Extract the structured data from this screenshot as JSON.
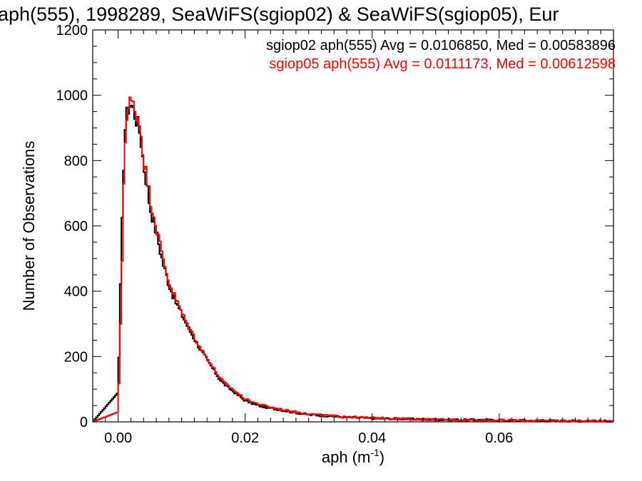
{
  "chart_data": {
    "type": "histogram-step",
    "title": "aph(555), 1998289, SeaWiFS(sgiop02) & SeaWiFS(sgiop05), Eur",
    "xlabel": "aph (m",
    "xlabel_sup": "-1",
    "xlabel_close": ")",
    "ylabel": "Number of Observations",
    "xlim": [
      -0.004,
      0.078
    ],
    "ylim": [
      0,
      1200
    ],
    "x_ticks": [
      0.0,
      0.02,
      0.04,
      0.06
    ],
    "x_tick_labels": [
      "0.00",
      "0.02",
      "0.04",
      "0.06"
    ],
    "y_ticks": [
      0,
      200,
      400,
      600,
      800,
      1000,
      1200
    ],
    "y_tick_labels": [
      "0",
      "200",
      "400",
      "600",
      "800",
      "1000",
      "1200"
    ],
    "grid": false,
    "legend_position": "top-right",
    "annotations": [
      {
        "text": "sgiop02 aph(555) Avg = 0.0106850, Med = 0.00583896",
        "color": "#000000"
      },
      {
        "text": "sgiop05 aph(555) Avg = 0.0111173, Med = 0.00612598",
        "color": "#ff0000"
      }
    ],
    "series": [
      {
        "color": "#000000",
        "x": [
          -0.004,
          0.0,
          0.0005,
          0.001,
          0.0015,
          0.002,
          0.0025,
          0.003,
          0.0035,
          0.004,
          0.0045,
          0.005,
          0.006,
          0.007,
          0.008,
          0.009,
          0.01,
          0.011,
          0.012,
          0.013,
          0.014,
          0.015,
          0.016,
          0.017,
          0.018,
          0.019,
          0.02,
          0.022,
          0.024,
          0.026,
          0.028,
          0.03,
          0.033,
          0.036,
          0.04,
          0.045,
          0.05,
          0.055,
          0.06,
          0.065,
          0.07,
          0.078
        ],
        "values": [
          0,
          90,
          520,
          880,
          960,
          975,
          950,
          920,
          880,
          790,
          730,
          660,
          580,
          490,
          420,
          370,
          330,
          290,
          255,
          220,
          190,
          160,
          130,
          110,
          95,
          80,
          65,
          50,
          42,
          35,
          28,
          22,
          18,
          14,
          11,
          9,
          7,
          6,
          5,
          4,
          3,
          2
        ]
      },
      {
        "color": "#ff0000",
        "x": [
          -0.004,
          0.0,
          0.0005,
          0.001,
          0.0015,
          0.002,
          0.0025,
          0.003,
          0.0035,
          0.004,
          0.0045,
          0.005,
          0.006,
          0.007,
          0.008,
          0.009,
          0.01,
          0.011,
          0.012,
          0.013,
          0.014,
          0.015,
          0.016,
          0.017,
          0.018,
          0.019,
          0.02,
          0.022,
          0.024,
          0.026,
          0.028,
          0.03,
          0.033,
          0.036,
          0.04,
          0.045,
          0.05,
          0.055,
          0.06,
          0.065,
          0.07,
          0.078
        ],
        "values": [
          0,
          30,
          380,
          850,
          950,
          985,
          960,
          940,
          905,
          810,
          750,
          690,
          600,
          505,
          430,
          380,
          335,
          295,
          260,
          225,
          195,
          165,
          135,
          115,
          100,
          85,
          70,
          55,
          45,
          37,
          30,
          24,
          19,
          15,
          12,
          9,
          7,
          6,
          5,
          4,
          3,
          2
        ]
      }
    ]
  }
}
